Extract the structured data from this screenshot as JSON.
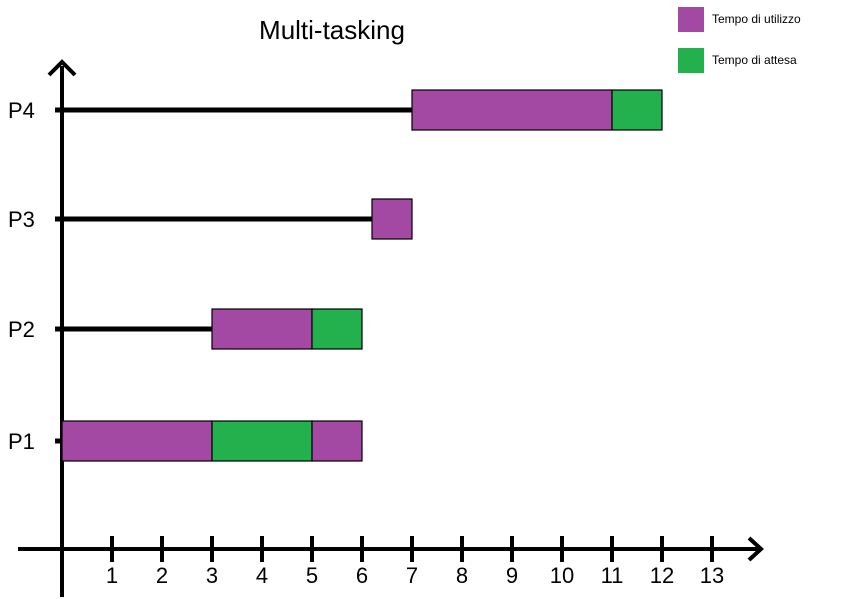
{
  "chart_data": {
    "type": "bar",
    "title": "Multi-tasking",
    "xlabel": "",
    "ylabel": "",
    "xlim": [
      0,
      13
    ],
    "x_ticks": [
      1,
      2,
      3,
      4,
      5,
      6,
      7,
      8,
      9,
      10,
      11,
      12,
      13
    ],
    "categories": [
      "P1",
      "P2",
      "P3",
      "P4"
    ],
    "legend": [
      {
        "name": "Tempo di utilizzo",
        "color": "#a349a4"
      },
      {
        "name": "Tempo di attesa",
        "color": "#22b14c"
      }
    ],
    "legend_placement": "top-right",
    "grid": false,
    "processes": [
      {
        "name": "P1",
        "segments": [
          {
            "start": 0,
            "end": 3,
            "kind": "Tempo di utilizzo"
          },
          {
            "start": 3,
            "end": 5,
            "kind": "Tempo di attesa"
          },
          {
            "start": 5,
            "end": 6,
            "kind": "Tempo di utilizzo"
          }
        ]
      },
      {
        "name": "P2",
        "segments": [
          {
            "start": 3,
            "end": 5,
            "kind": "Tempo di utilizzo"
          },
          {
            "start": 5,
            "end": 6,
            "kind": "Tempo di attesa"
          }
        ]
      },
      {
        "name": "P3",
        "segments": [
          {
            "start": 6.2,
            "end": 7,
            "kind": "Tempo di utilizzo"
          }
        ]
      },
      {
        "name": "P4",
        "segments": [
          {
            "start": 7,
            "end": 11,
            "kind": "Tempo di utilizzo"
          },
          {
            "start": 11,
            "end": 12,
            "kind": "Tempo di attesa"
          }
        ]
      }
    ]
  }
}
